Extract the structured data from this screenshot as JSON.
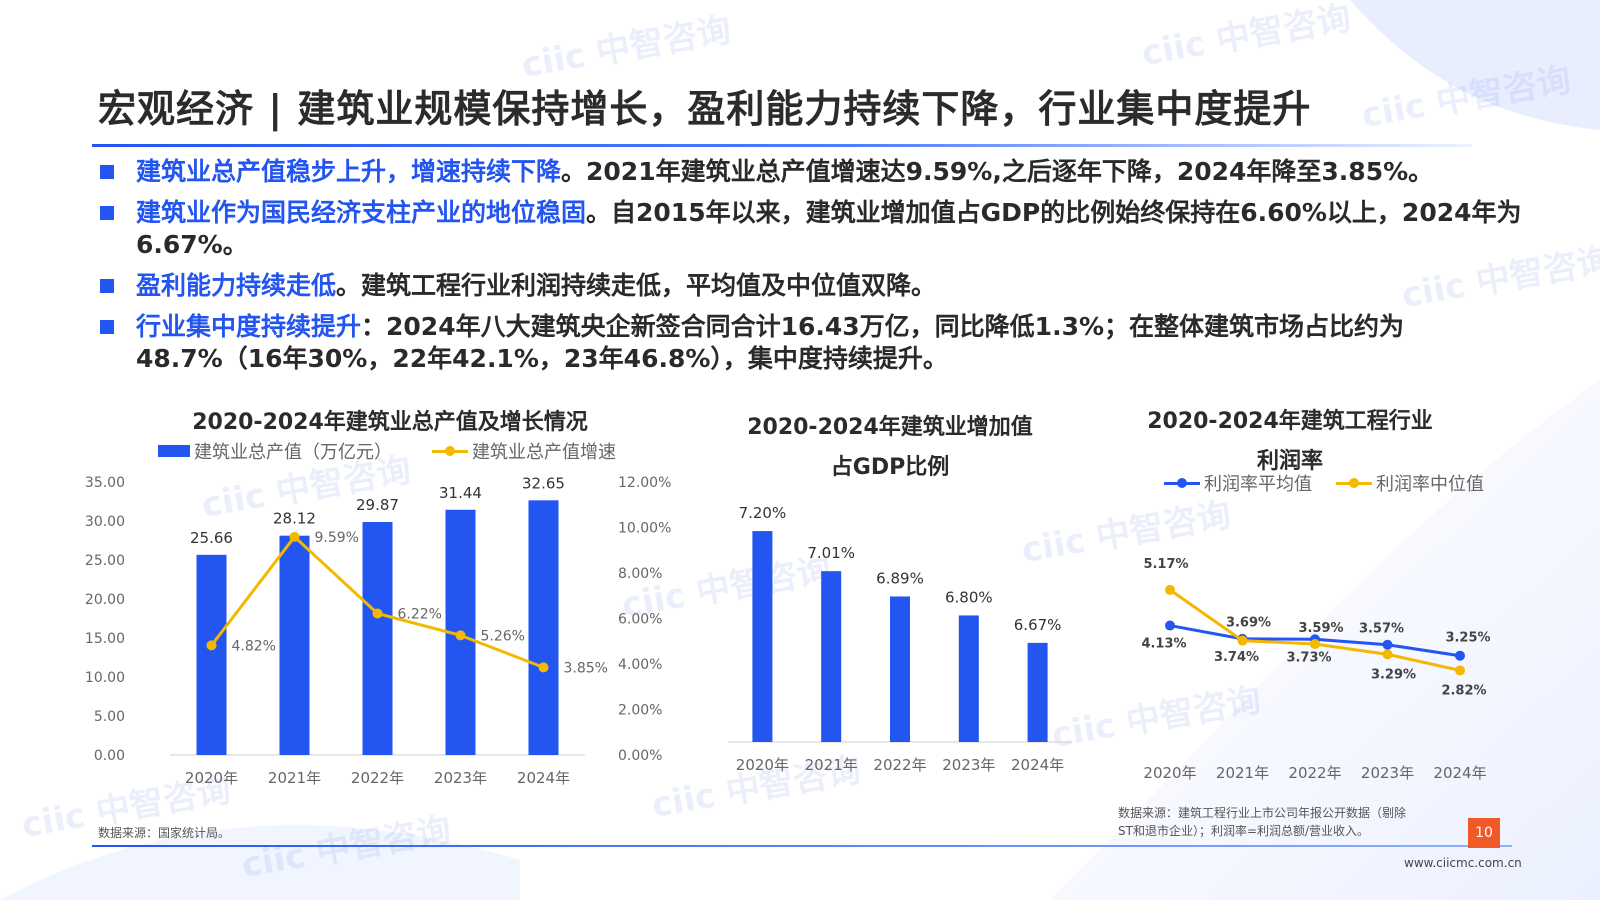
{
  "title": "宏观经济 | 建筑业规模保持增长，盈利能力持续下降，行业集中度提升",
  "bullets": [
    {
      "highlight": "建筑业总产值稳步上升，增速持续下降",
      "text": "。2021年建筑业总产值增速达9.59%,之后逐年下降，2024年降至3.85%。"
    },
    {
      "highlight": "建筑业作为国民经济支柱产业的地位稳固",
      "text": "。自2015年以来，建筑业增加值占GDP的比例始终保持在6.60%以上，2024年为6.67%。"
    },
    {
      "highlight": "盈利能力持续走低",
      "text": "。建筑工程行业利润持续走低，平均值及中位值双降。"
    },
    {
      "highlight": "行业集中度持续提升",
      "text": "：2024年八大建筑央企新签合同合计16.43万亿，同比降低1.3%；在整体建筑市场占比约为48.7%（16年30%，22年42.1%，23年46.8%），集中度持续提升。"
    }
  ],
  "chart_data": [
    {
      "type": "bar",
      "title": "2020-2024年建筑业总产值及增长情况",
      "categories": [
        "2020年",
        "2021年",
        "2022年",
        "2023年",
        "2024年"
      ],
      "series": [
        {
          "name": "建筑业总产值（万亿元）",
          "type": "bar",
          "values": [
            25.66,
            28.12,
            29.87,
            31.44,
            32.65
          ],
          "labels": [
            "25.66",
            "28.12",
            "29.87",
            "31.44",
            "32.65"
          ],
          "color": "#2355f0"
        },
        {
          "name": "建筑业总产值增速",
          "type": "line",
          "axis": "right",
          "values": [
            4.82,
            9.59,
            6.22,
            5.26,
            3.85
          ],
          "labels": [
            "4.82%",
            "9.59%",
            "6.22%",
            "5.26%",
            "3.85%"
          ],
          "color": "#f5b800"
        }
      ],
      "ylim": [
        0,
        35
      ],
      "yticks": [
        "0.00",
        "5.00",
        "10.00",
        "15.00",
        "20.00",
        "25.00",
        "30.00",
        "35.00"
      ],
      "y2lim": [
        0,
        12
      ],
      "y2ticks": [
        "0.00%",
        "2.00%",
        "4.00%",
        "6.00%",
        "8.00%",
        "10.00%",
        "12.00%"
      ],
      "legend_position": "top",
      "grid": false
    },
    {
      "type": "bar",
      "title_lines": [
        "2020-2024年建筑业增加值",
        "占GDP比例"
      ],
      "categories": [
        "2020年",
        "2021年",
        "2022年",
        "2023年",
        "2024年"
      ],
      "values": [
        7.2,
        7.01,
        6.89,
        6.8,
        6.67
      ],
      "labels": [
        "7.20%",
        "7.01%",
        "6.89%",
        "6.80%",
        "6.67%"
      ],
      "ylim": [
        6.2,
        7.3
      ],
      "color": "#2355f0",
      "grid": false
    },
    {
      "type": "line",
      "title_lines": [
        "2020-2024年建筑工程行业",
        "利润率"
      ],
      "categories": [
        "2020年",
        "2021年",
        "2022年",
        "2023年",
        "2024年"
      ],
      "series": [
        {
          "name": "利润率平均值",
          "values": [
            4.13,
            3.74,
            3.73,
            3.57,
            3.25
          ],
          "labels": [
            "4.13%",
            "3.74%",
            "3.73%",
            "3.57%",
            "3.25%"
          ],
          "color": "#2355f0"
        },
        {
          "name": "利润率中位值",
          "values": [
            5.17,
            3.69,
            3.59,
            3.29,
            2.82
          ],
          "labels": [
            "5.17%",
            "3.69%",
            "3.59%",
            "3.29%",
            "2.82%"
          ],
          "color": "#f5b800"
        }
      ],
      "ylim": [
        0.5,
        7.5
      ],
      "legend_position": "top",
      "grid": false
    }
  ],
  "sources": {
    "left": "数据来源：国家统计局。",
    "right_line1": "数据来源：建筑工程行业上市公司年报公开数据（剔除",
    "right_line2": "ST和退市企业）；利润率=利润总额/营业收入。"
  },
  "page_number": "10",
  "website": "www.ciicmc.com.cn",
  "watermark": "ciic 中智咨询"
}
